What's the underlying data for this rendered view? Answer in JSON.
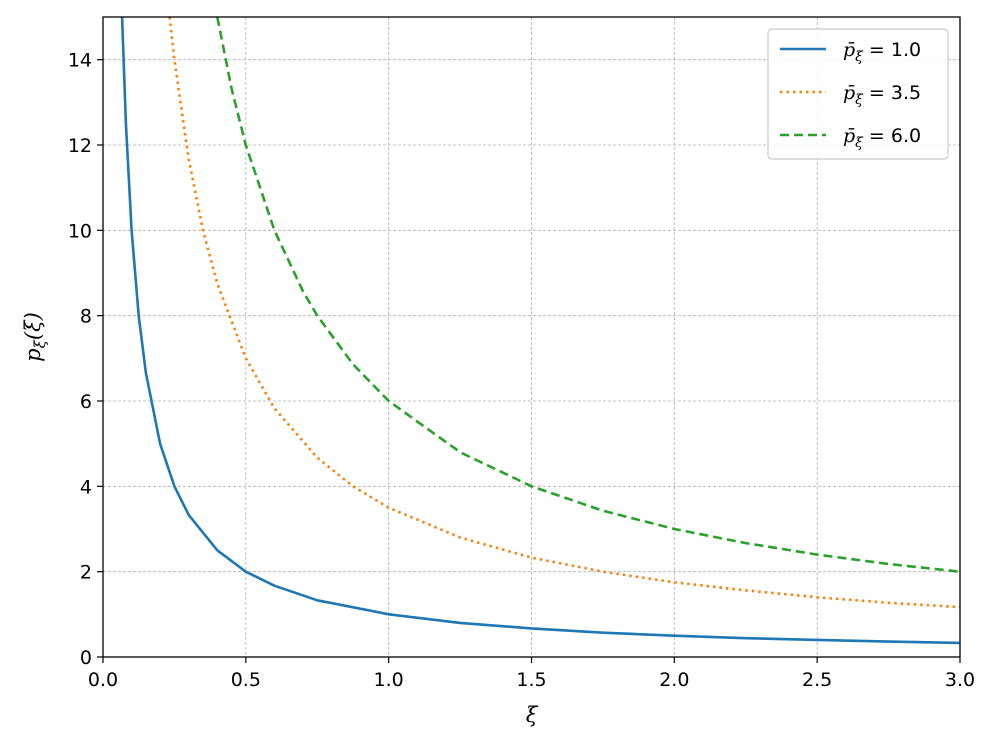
{
  "chart_data": {
    "type": "line",
    "xlabel": "ξ",
    "ylabel": "p_ξ(ξ)",
    "xlim": [
      0.0,
      3.0
    ],
    "ylim": [
      0,
      15
    ],
    "x_ticks": [
      "0.0",
      "0.5",
      "1.0",
      "1.5",
      "2.0",
      "2.5",
      "3.0"
    ],
    "y_ticks": [
      "0",
      "2",
      "4",
      "6",
      "8",
      "10",
      "12",
      "14"
    ],
    "grid": true,
    "legend_position": "top-right",
    "series": [
      {
        "name": "p̄ξ = 1.0",
        "name_parts": {
          "symbol": "p̄",
          "sub": "ξ",
          "eq": " = ",
          "value": "1.0"
        },
        "color": "#1f77b4",
        "style": "solid",
        "x": [
          0.067,
          0.08,
          0.1,
          0.125,
          0.15,
          0.2,
          0.25,
          0.3,
          0.4,
          0.5,
          0.6,
          0.75,
          1.0,
          1.25,
          1.5,
          1.75,
          2.0,
          2.25,
          2.5,
          2.75,
          3.0
        ],
        "y": [
          15.0,
          12.5,
          10.0,
          8.0,
          6.67,
          5.0,
          4.0,
          3.33,
          2.5,
          2.0,
          1.67,
          1.33,
          1.0,
          0.8,
          0.67,
          0.57,
          0.5,
          0.44,
          0.4,
          0.36,
          0.33
        ]
      },
      {
        "name": "p̄ξ = 3.5",
        "name_parts": {
          "symbol": "p̄",
          "sub": "ξ",
          "eq": " = ",
          "value": "3.5"
        },
        "color": "#ff7f0e",
        "style": "dotted",
        "x": [
          0.233,
          0.25,
          0.3,
          0.35,
          0.4,
          0.5,
          0.6,
          0.75,
          0.875,
          1.0,
          1.25,
          1.5,
          1.75,
          2.0,
          2.25,
          2.5,
          2.75,
          3.0
        ],
        "y": [
          15.0,
          14.0,
          11.67,
          10.0,
          8.75,
          7.0,
          5.83,
          4.67,
          4.0,
          3.5,
          2.8,
          2.33,
          2.0,
          1.75,
          1.56,
          1.4,
          1.27,
          1.17
        ]
      },
      {
        "name": "p̄ξ = 6.0",
        "name_parts": {
          "symbol": "p̄",
          "sub": "ξ",
          "eq": " = ",
          "value": "6.0"
        },
        "color": "#2ca02c",
        "style": "dashed",
        "x": [
          0.4,
          0.45,
          0.5,
          0.6,
          0.7,
          0.75,
          0.875,
          1.0,
          1.25,
          1.5,
          1.75,
          2.0,
          2.25,
          2.5,
          2.75,
          3.0
        ],
        "y": [
          15.0,
          13.33,
          12.0,
          10.0,
          8.57,
          8.0,
          6.86,
          6.0,
          4.8,
          4.0,
          3.43,
          3.0,
          2.67,
          2.4,
          2.18,
          2.0
        ]
      }
    ]
  }
}
